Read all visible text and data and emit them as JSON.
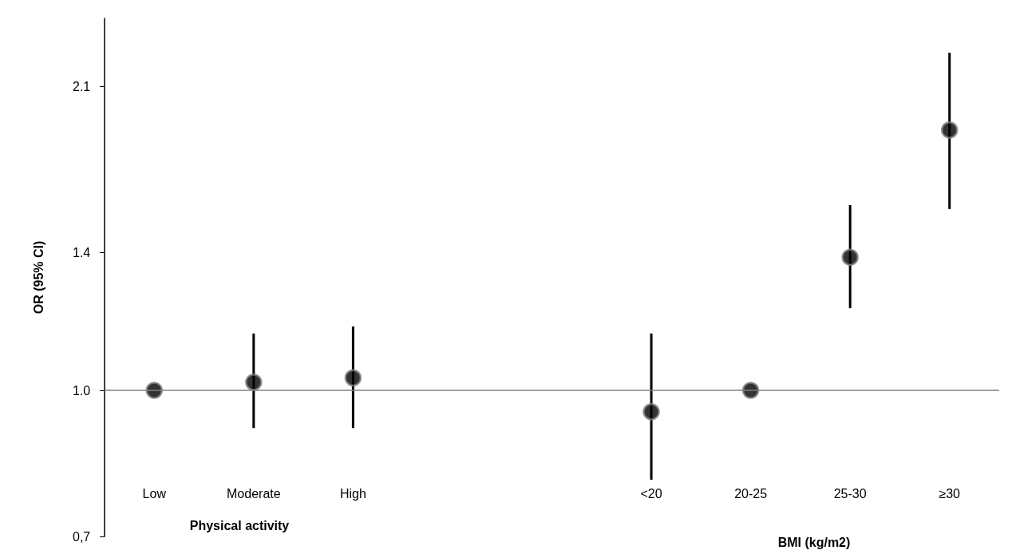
{
  "chart_data": {
    "type": "scatter",
    "ylabel": "OR (95% CI)",
    "log": "y",
    "ylim": [
      0.7,
      2.48
    ],
    "yticks": [
      {
        "value": 0.7,
        "label": "0,7"
      },
      {
        "value": 1.0,
        "label": "1.0"
      },
      1.4,
      2.1
    ],
    "categories": [
      "Low",
      "Moderate",
      "High",
      null,
      null,
      "<20",
      "20-25",
      "25-30",
      "≥30"
    ],
    "values": [
      1.0,
      1.02,
      1.031,
      null,
      null,
      0.949,
      1.0,
      1.384,
      1.888
    ],
    "errors": [
      null,
      [
        0.912,
        1.149
      ],
      [
        0.912,
        1.169
      ],
      null,
      null,
      [
        0.804,
        1.149
      ],
      null,
      [
        1.222,
        1.572
      ],
      [
        1.557,
        2.28
      ]
    ],
    "color": "#000000",
    "marker": "circle",
    "grid": false,
    "ref_lines": [
      {
        "axis": "y",
        "value": 1.0,
        "color": "#808080"
      }
    ],
    "annotations": [
      "Physical activity",
      "BMI (kg/m2)"
    ]
  }
}
